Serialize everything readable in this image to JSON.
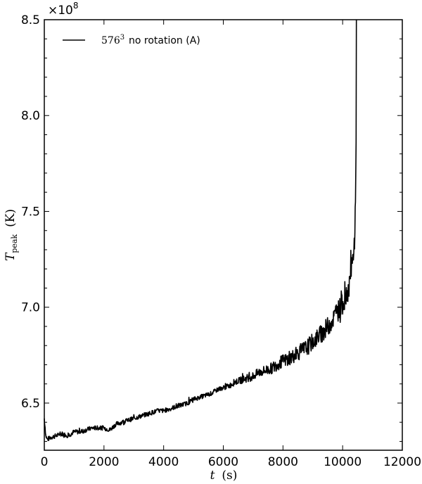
{
  "chart_data": {
    "type": "line",
    "title": "",
    "xlabel": "t  (s)",
    "ylabel": "T_peak  (K)",
    "ylabel_parts": {
      "symbol": "T",
      "subscript": "peak",
      "unit": "(K)"
    },
    "xlabel_parts": {
      "symbol": "t",
      "unit": "(s)"
    },
    "y_multiplier": "×10",
    "y_multiplier_exp": "8",
    "xlim": [
      0,
      12000
    ],
    "ylim": [
      6.254,
      8.5
    ],
    "xticks": [
      0,
      2000,
      4000,
      6000,
      8000,
      10000,
      12000
    ],
    "xtick_labels": [
      "0",
      "2000",
      "4000",
      "6000",
      "8000",
      "10000",
      "12000"
    ],
    "yticks": [
      6.5,
      7.0,
      7.5,
      8.0,
      8.5
    ],
    "ytick_labels": [
      "6.5",
      "7.0",
      "7.5",
      "8.0",
      "8.5"
    ],
    "grid": false,
    "legend_position": "upper left",
    "series": [
      {
        "name": "576^3 no rotation (A)",
        "legend_math": "576",
        "legend_math_exp": "3",
        "legend_text": "no rotation (A)",
        "color": "#000000",
        "x": [
          0,
          50,
          100,
          200,
          400,
          600,
          800,
          1000,
          1200,
          1400,
          1600,
          1800,
          2000,
          2200,
          2400,
          2600,
          2800,
          3000,
          3200,
          3400,
          3600,
          3800,
          4000,
          4200,
          4400,
          4600,
          4800,
          5000,
          5200,
          5400,
          5600,
          5800,
          6000,
          6200,
          6400,
          6600,
          6800,
          7000,
          7200,
          7400,
          7600,
          7800,
          8000,
          8200,
          8400,
          8600,
          8800,
          9000,
          9200,
          9400,
          9600,
          9800,
          10000,
          10100,
          10200,
          10300,
          10350,
          10400,
          10430,
          10450,
          10460
        ],
        "values": [
          6.42,
          6.33,
          6.31,
          6.32,
          6.33,
          6.34,
          6.33,
          6.35,
          6.35,
          6.36,
          6.37,
          6.37,
          6.37,
          6.36,
          6.39,
          6.4,
          6.41,
          6.42,
          6.43,
          6.44,
          6.45,
          6.46,
          6.46,
          6.47,
          6.48,
          6.49,
          6.5,
          6.52,
          6.53,
          6.54,
          6.55,
          6.57,
          6.58,
          6.59,
          6.61,
          6.62,
          6.63,
          6.64,
          6.66,
          6.67,
          6.68,
          6.7,
          6.72,
          6.73,
          6.75,
          6.77,
          6.79,
          6.82,
          6.85,
          6.88,
          6.92,
          6.97,
          7.02,
          7.05,
          7.1,
          7.2,
          7.25,
          7.35,
          7.55,
          7.9,
          8.5
        ]
      }
    ]
  }
}
